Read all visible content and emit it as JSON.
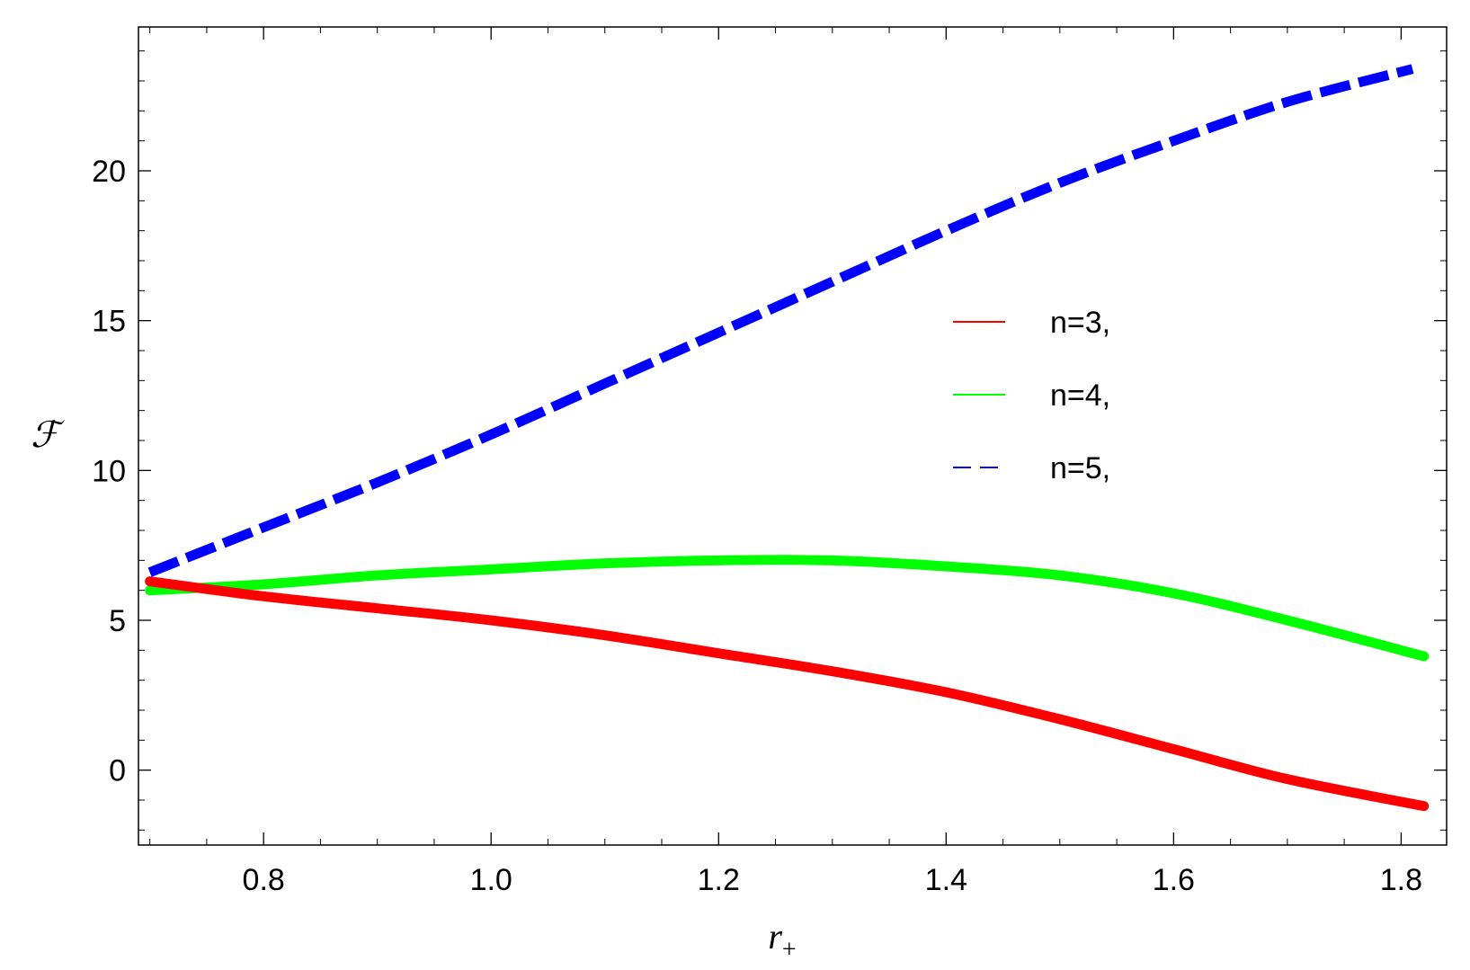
{
  "chart_data": {
    "type": "line",
    "xlabel": "r",
    "xlabel_subscript": "+",
    "ylabel": "ℱ",
    "xlim": [
      0.69,
      1.84
    ],
    "ylim": [
      -2.5,
      24.8
    ],
    "x_ticks": [
      0.8,
      1.0,
      1.2,
      1.4,
      1.6,
      1.8
    ],
    "x_tick_labels": [
      "0.8",
      "1.0",
      "1.2",
      "1.4",
      "1.6",
      "1.8"
    ],
    "y_ticks": [
      0,
      5,
      10,
      15,
      20
    ],
    "y_tick_labels": [
      "0",
      "5",
      "10",
      "15",
      "20"
    ],
    "grid": false,
    "legend_position": "center-right",
    "series": [
      {
        "name": "n=3,",
        "color": "#ff0000",
        "style": "solid",
        "x": [
          0.7,
          0.8,
          0.9,
          1.0,
          1.1,
          1.2,
          1.3,
          1.4,
          1.5,
          1.6,
          1.7,
          1.82
        ],
        "values": [
          6.3,
          5.8,
          5.4,
          5.0,
          4.5,
          3.9,
          3.3,
          2.6,
          1.7,
          0.7,
          -0.3,
          -1.2
        ]
      },
      {
        "name": "n=4,",
        "color": "#00ff00",
        "style": "solid",
        "x": [
          0.7,
          0.8,
          0.9,
          1.0,
          1.1,
          1.2,
          1.3,
          1.4,
          1.5,
          1.6,
          1.7,
          1.82
        ],
        "values": [
          6.0,
          6.2,
          6.5,
          6.7,
          6.9,
          7.0,
          7.0,
          6.8,
          6.5,
          5.9,
          5.0,
          3.8
        ]
      },
      {
        "name": "n=5,",
        "color": "#0000ff",
        "style": "dashed",
        "x": [
          0.7,
          0.8,
          0.9,
          1.0,
          1.1,
          1.2,
          1.3,
          1.4,
          1.5,
          1.6,
          1.7,
          1.81
        ],
        "values": [
          6.6,
          8.1,
          9.6,
          11.2,
          12.9,
          14.6,
          16.3,
          18.0,
          19.6,
          21.0,
          22.3,
          23.4
        ]
      }
    ]
  }
}
